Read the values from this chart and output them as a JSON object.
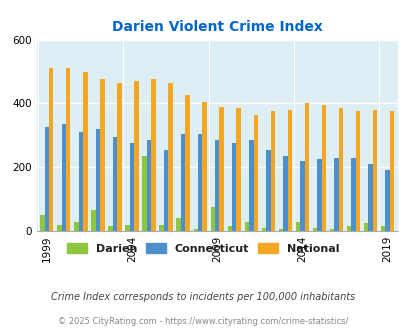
{
  "title": "Darien Violent Crime Index",
  "title_color": "#0066cc",
  "years": [
    1999,
    2000,
    2001,
    2002,
    2003,
    2004,
    2005,
    2006,
    2007,
    2008,
    2009,
    2010,
    2011,
    2012,
    2013,
    2014,
    2015,
    2016,
    2017,
    2018,
    2019
  ],
  "darien": [
    50,
    20,
    28,
    65,
    15,
    18,
    235,
    20,
    40,
    5,
    75,
    15,
    28,
    10,
    5,
    28,
    10,
    5,
    15,
    25,
    15
  ],
  "connecticut": [
    325,
    335,
    310,
    320,
    295,
    275,
    285,
    255,
    305,
    305,
    285,
    275,
    285,
    255,
    235,
    220,
    225,
    230,
    230,
    210,
    190
  ],
  "national": [
    510,
    510,
    500,
    475,
    465,
    470,
    475,
    465,
    425,
    405,
    390,
    385,
    365,
    375,
    380,
    400,
    395,
    385,
    375,
    380,
    375
  ],
  "darien_color": "#8dc63f",
  "connecticut_color": "#4d8fcc",
  "national_color": "#f5a623",
  "bg_color": "#ddeef5",
  "ylim": [
    0,
    600
  ],
  "yticks": [
    0,
    200,
    400,
    600
  ],
  "xtick_years": [
    1999,
    2004,
    2009,
    2014,
    2019
  ],
  "footnote": "Crime Index corresponds to incidents per 100,000 inhabitants",
  "copyright": "© 2025 CityRating.com - https://www.cityrating.com/crime-statistics/",
  "legend_labels": [
    "Darien",
    "Connecticut",
    "National"
  ],
  "bar_width": 0.26
}
